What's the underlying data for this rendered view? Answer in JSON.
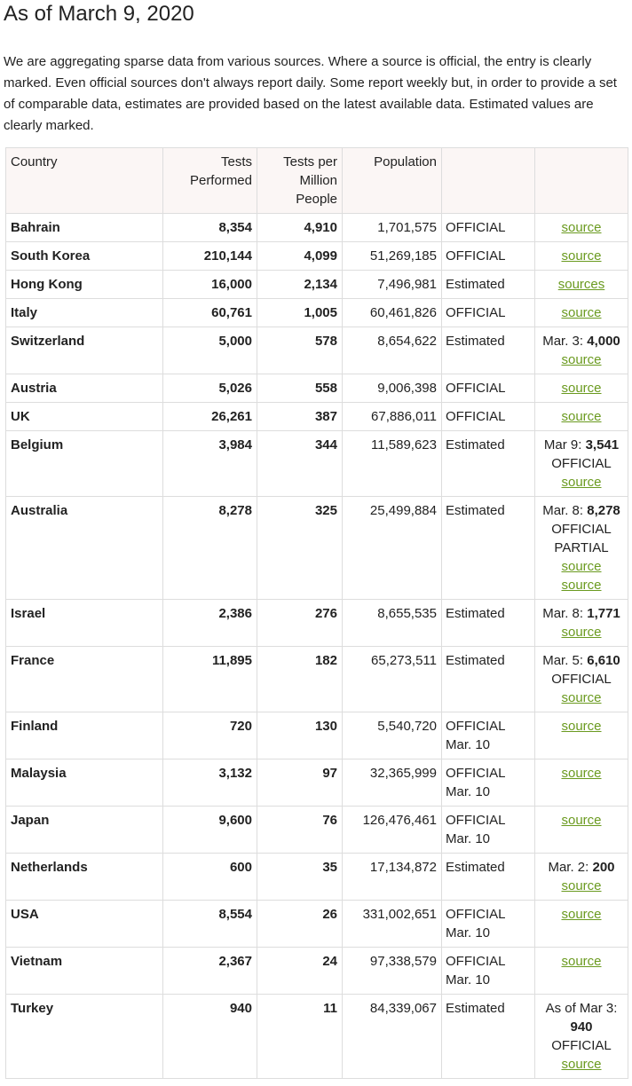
{
  "title": "As of March 9, 2020",
  "intro": "We are aggregating sparse data from various sources. Where a source is official, the entry is clearly marked. Even official sources don't always report daily. Some report weekly but, in order to provide a set of comparable data, estimates are provided based on the latest available data. Estimated values are clearly marked.",
  "headers": {
    "country": "Country",
    "tests": "Tests Performed",
    "per_million": "Tests per Million People",
    "population": "Population",
    "status": "",
    "notes": ""
  },
  "colors": {
    "link": "#6a9a1f",
    "header_bg": "#fbf6f5",
    "border": "#dddddd"
  },
  "rows": [
    {
      "country": "Bahrain",
      "tests": "8,354",
      "per_million": "4,910",
      "population": "1,701,575",
      "status": [
        "OFFICIAL"
      ],
      "notes": {
        "prefix": "",
        "bold": "",
        "lines": [],
        "links": [
          "source"
        ]
      }
    },
    {
      "country": "South Korea",
      "tests": "210,144",
      "per_million": "4,099",
      "population": "51,269,185",
      "status": [
        "OFFICIAL"
      ],
      "notes": {
        "prefix": "",
        "bold": "",
        "lines": [],
        "links": [
          "source"
        ]
      }
    },
    {
      "country": "Hong Kong",
      "tests": "16,000",
      "per_million": "2,134",
      "population": "7,496,981",
      "status": [
        "Estimated"
      ],
      "notes": {
        "prefix": "",
        "bold": "",
        "lines": [],
        "links": [
          "sources"
        ]
      }
    },
    {
      "country": "Italy",
      "tests": "60,761",
      "per_million": "1,005",
      "population": "60,461,826",
      "status": [
        "OFFICIAL"
      ],
      "notes": {
        "prefix": "",
        "bold": "",
        "lines": [],
        "links": [
          "source"
        ]
      }
    },
    {
      "country": "Switzerland",
      "tests": "5,000",
      "per_million": "578",
      "population": "8,654,622",
      "status": [
        "Estimated"
      ],
      "notes": {
        "prefix": "Mar. 3: ",
        "bold": "4,000",
        "lines": [],
        "links": [
          "source"
        ]
      }
    },
    {
      "country": "Austria",
      "tests": "5,026",
      "per_million": "558",
      "population": "9,006,398",
      "status": [
        "OFFICIAL"
      ],
      "notes": {
        "prefix": "",
        "bold": "",
        "lines": [],
        "links": [
          "source"
        ]
      }
    },
    {
      "country": "UK",
      "tests": "26,261",
      "per_million": "387",
      "population": "67,886,011",
      "status": [
        "OFFICIAL"
      ],
      "notes": {
        "prefix": "",
        "bold": "",
        "lines": [],
        "links": [
          "source"
        ]
      }
    },
    {
      "country": "Belgium",
      "tests": "3,984",
      "per_million": "344",
      "population": "11,589,623",
      "status": [
        "Estimated"
      ],
      "notes": {
        "prefix": "Mar 9: ",
        "bold": "3,541",
        "lines": [
          "OFFICIAL"
        ],
        "links": [
          "source"
        ]
      }
    },
    {
      "country": "Australia",
      "tests": "8,278",
      "per_million": "325",
      "population": "25,499,884",
      "status": [
        "Estimated"
      ],
      "notes": {
        "prefix": "Mar. 8: ",
        "bold": "8,278",
        "lines": [
          "OFFICIAL",
          "PARTIAL"
        ],
        "links": [
          "source",
          "source"
        ]
      }
    },
    {
      "country": "Israel",
      "tests": "2,386",
      "per_million": "276",
      "population": "8,655,535",
      "status": [
        "Estimated"
      ],
      "notes": {
        "prefix": "Mar. 8: ",
        "bold": "1,771",
        "lines": [],
        "links": [
          "source"
        ]
      }
    },
    {
      "country": "France",
      "tests": "11,895",
      "per_million": "182",
      "population": "65,273,511",
      "status": [
        "Estimated"
      ],
      "notes": {
        "prefix": "Mar. 5: ",
        "bold": "6,610",
        "lines": [
          "OFFICIAL"
        ],
        "links": [
          "source"
        ]
      }
    },
    {
      "country": "Finland",
      "tests": "720",
      "per_million": "130",
      "population": "5,540,720",
      "status": [
        "OFFICIAL",
        "Mar. 10"
      ],
      "notes": {
        "prefix": "",
        "bold": "",
        "lines": [],
        "links": [
          "source"
        ]
      }
    },
    {
      "country": "Malaysia",
      "tests": "3,132",
      "per_million": "97",
      "population": "32,365,999",
      "status": [
        "OFFICIAL",
        "Mar. 10"
      ],
      "notes": {
        "prefix": "",
        "bold": "",
        "lines": [],
        "links": [
          "source"
        ]
      }
    },
    {
      "country": "Japan",
      "tests": "9,600",
      "per_million": "76",
      "population": "126,476,461",
      "status": [
        "OFFICIAL",
        "Mar. 10"
      ],
      "notes": {
        "prefix": "",
        "bold": "",
        "lines": [],
        "links": [
          "source"
        ]
      }
    },
    {
      "country": "Netherlands",
      "tests": "600",
      "per_million": "35",
      "population": "17,134,872",
      "status": [
        "Estimated"
      ],
      "notes": {
        "prefix": "Mar. 2: ",
        "bold": "200",
        "lines": [],
        "links": [
          "source"
        ]
      }
    },
    {
      "country": "USA",
      "tests": "8,554",
      "per_million": "26",
      "population": "331,002,651",
      "status": [
        "OFFICIAL",
        "Mar. 10"
      ],
      "notes": {
        "prefix": "",
        "bold": "",
        "lines": [],
        "links": [
          "source"
        ]
      }
    },
    {
      "country": "Vietnam",
      "tests": "2,367",
      "per_million": "24",
      "population": "97,338,579",
      "status": [
        "OFFICIAL",
        "Mar. 10"
      ],
      "notes": {
        "prefix": "",
        "bold": "",
        "lines": [],
        "links": [
          "source"
        ]
      }
    },
    {
      "country": "Turkey",
      "tests": "940",
      "per_million": "11",
      "population": "84,339,067",
      "status": [
        "Estimated"
      ],
      "notes": {
        "prefix": "As of Mar 3: ",
        "bold": "940",
        "lines": [
          "OFFICIAL"
        ],
        "links": [
          "source"
        ]
      }
    }
  ]
}
